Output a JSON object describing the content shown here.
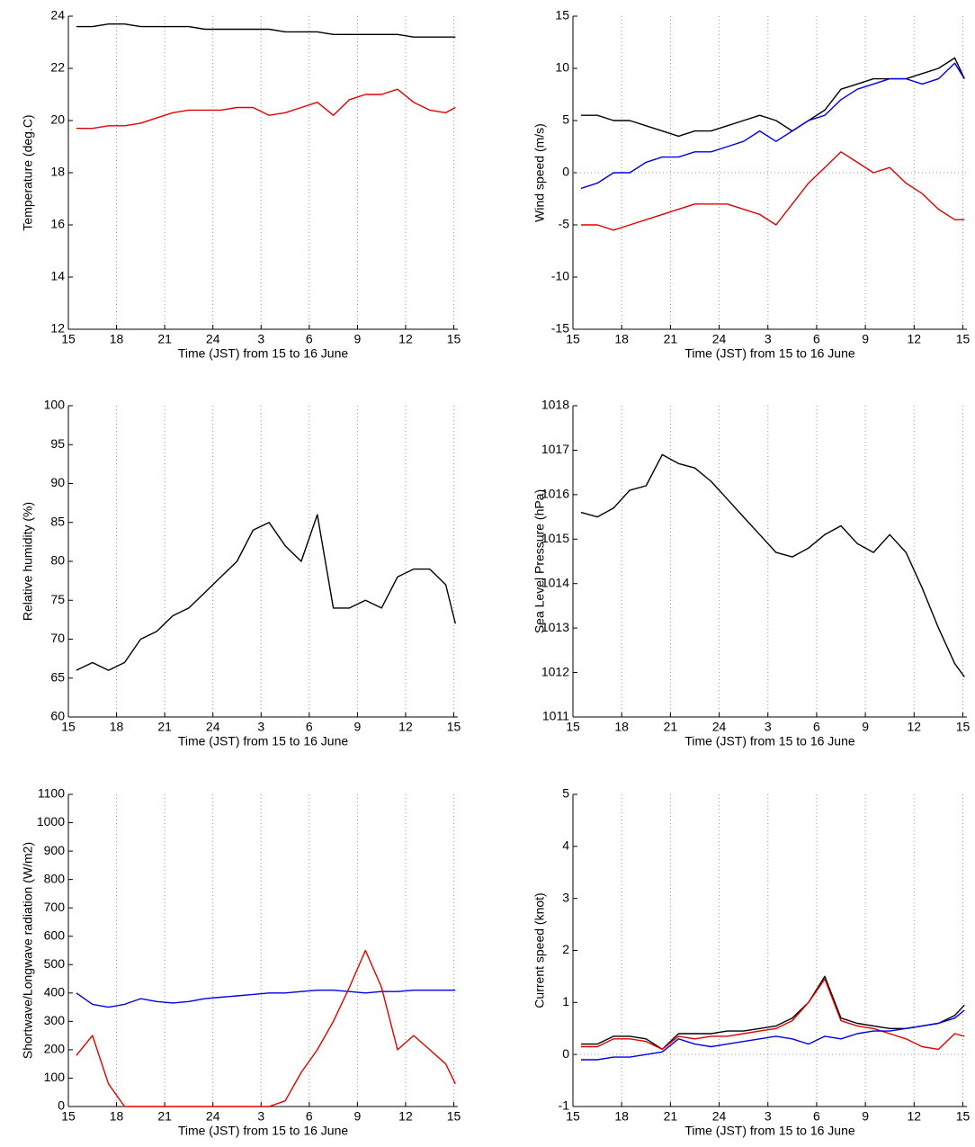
{
  "chart_data": [
    {
      "type": "line",
      "ylabel": "Temperature (deg.C)",
      "xlabel": "Time (JST) from 15 to 16 June",
      "x": [
        15.5,
        16.5,
        17.5,
        18.5,
        19.5,
        20.5,
        21.5,
        22.5,
        23.5,
        24.5,
        25.5,
        26.5,
        27.5,
        28.5,
        29.5,
        30.5,
        31.5,
        32.5,
        33.5,
        34.5,
        35.5,
        36.5,
        37.5,
        38.5,
        39.1
      ],
      "series": [
        {
          "color": "#000000",
          "values": [
            23.6,
            23.6,
            23.7,
            23.7,
            23.6,
            23.6,
            23.6,
            23.6,
            23.5,
            23.5,
            23.5,
            23.5,
            23.5,
            23.4,
            23.4,
            23.4,
            23.3,
            23.3,
            23.3,
            23.3,
            23.3,
            23.2,
            23.2,
            23.2,
            23.2
          ]
        },
        {
          "color": "#e00000",
          "values": [
            19.7,
            19.7,
            19.8,
            19.8,
            19.9,
            20.1,
            20.3,
            20.4,
            20.4,
            20.4,
            20.5,
            20.5,
            20.2,
            20.3,
            20.5,
            20.7,
            20.2,
            20.8,
            21.0,
            21.0,
            21.2,
            20.7,
            20.4,
            20.3,
            20.5
          ]
        }
      ],
      "xlim": [
        15,
        39.25
      ],
      "xticks": [
        15,
        18,
        21,
        24,
        {
          "value": 27,
          "label": "3"
        },
        {
          "value": 30,
          "label": "6"
        },
        {
          "value": 33,
          "label": "9"
        },
        {
          "value": 36,
          "label": "12"
        },
        {
          "value": 39,
          "label": "15"
        }
      ],
      "ylim": [
        12,
        24
      ],
      "yticks": [
        12,
        14,
        16,
        18,
        20,
        22,
        24
      ],
      "xgrid": true
    },
    {
      "type": "line",
      "ylabel": "Wind speed (m/s)",
      "xlabel": "Time (JST) from 15 to 16 June",
      "x": [
        15.5,
        16.5,
        17.5,
        18.5,
        19.5,
        20.5,
        21.5,
        22.5,
        23.5,
        24.5,
        25.5,
        26.5,
        27.5,
        28.5,
        29.5,
        30.5,
        31.5,
        32.5,
        33.5,
        34.5,
        35.5,
        36.5,
        37.5,
        38.5,
        39.1
      ],
      "series": [
        {
          "color": "#000000",
          "values": [
            5.5,
            5.5,
            5,
            5,
            4.5,
            4,
            3.5,
            4,
            4,
            4.5,
            5,
            5.5,
            5,
            4,
            5,
            6,
            8,
            8.5,
            9,
            9,
            9,
            9.5,
            10,
            11,
            9
          ]
        },
        {
          "color": "#0000e0",
          "values": [
            -1.5,
            -1,
            0,
            0,
            1,
            1.5,
            1.5,
            2,
            2,
            2.5,
            3,
            4,
            3,
            4,
            5,
            5.5,
            7,
            8,
            8.5,
            9,
            9,
            8.5,
            9,
            10.5,
            9
          ]
        },
        {
          "color": "#e00000",
          "values": [
            -5,
            -5,
            -5.5,
            -5,
            -4.5,
            -4,
            -3.5,
            -3,
            -3,
            -3,
            -3.5,
            -4,
            -5,
            -3,
            -1,
            0.5,
            2,
            1,
            0,
            0.5,
            -1,
            -2,
            -3.5,
            -4.5,
            -4.5
          ]
        }
      ],
      "xlim": [
        15,
        39.25
      ],
      "xticks": [
        15,
        18,
        21,
        24,
        {
          "value": 27,
          "label": "3"
        },
        {
          "value": 30,
          "label": "6"
        },
        {
          "value": 33,
          "label": "9"
        },
        {
          "value": 36,
          "label": "12"
        },
        {
          "value": 39,
          "label": "15"
        }
      ],
      "ylim": [
        -15,
        15
      ],
      "yticks": [
        -15,
        -10,
        -5,
        0,
        5,
        10,
        15
      ],
      "xgrid": true,
      "reference_line": 0
    },
    {
      "type": "line",
      "ylabel": "Relative humidity (%)",
      "xlabel": "Time (JST) from 15 to 16 June",
      "x": [
        15.5,
        16.5,
        17.5,
        18.5,
        19.5,
        20.5,
        21.5,
        22.5,
        23.5,
        24.5,
        25.5,
        26.5,
        27.5,
        28.5,
        29.5,
        30.5,
        31.5,
        32.5,
        33.5,
        34.5,
        35.5,
        36.5,
        37.5,
        38.5,
        39.1
      ],
      "series": [
        {
          "color": "#000000",
          "values": [
            66,
            67,
            66,
            67,
            70,
            71,
            73,
            74,
            76,
            78,
            80,
            84,
            85,
            82,
            80,
            86,
            74,
            74,
            75,
            74,
            78,
            79,
            79,
            77,
            72
          ]
        }
      ],
      "xlim": [
        15,
        39.25
      ],
      "xticks": [
        15,
        18,
        21,
        24,
        {
          "value": 27,
          "label": "3"
        },
        {
          "value": 30,
          "label": "6"
        },
        {
          "value": 33,
          "label": "9"
        },
        {
          "value": 36,
          "label": "12"
        },
        {
          "value": 39,
          "label": "15"
        }
      ],
      "ylim": [
        60,
        100
      ],
      "yticks": [
        60,
        65,
        70,
        75,
        80,
        85,
        90,
        95,
        100
      ],
      "xgrid": true
    },
    {
      "type": "line",
      "ylabel": "Sea Level Pressure (hPa)",
      "xlabel": "Time (JST) from 15 to 16 June",
      "x": [
        15.5,
        16.5,
        17.5,
        18.5,
        19.5,
        20.5,
        21.5,
        22.5,
        23.5,
        24.5,
        25.5,
        26.5,
        27.5,
        28.5,
        29.5,
        30.5,
        31.5,
        32.5,
        33.5,
        34.5,
        35.5,
        36.5,
        37.5,
        38.5,
        39.1
      ],
      "series": [
        {
          "color": "#000000",
          "values": [
            1015.6,
            1015.5,
            1015.7,
            1016.1,
            1016.2,
            1016.9,
            1016.7,
            1016.6,
            1016.3,
            1015.9,
            1015.5,
            1015.1,
            1014.7,
            1014.6,
            1014.8,
            1015.1,
            1015.3,
            1014.9,
            1014.7,
            1015.1,
            1014.7,
            1013.9,
            1013.0,
            1012.2,
            1011.9
          ]
        }
      ],
      "xlim": [
        15,
        39.25
      ],
      "xticks": [
        15,
        18,
        21,
        24,
        {
          "value": 27,
          "label": "3"
        },
        {
          "value": 30,
          "label": "6"
        },
        {
          "value": 33,
          "label": "9"
        },
        {
          "value": 36,
          "label": "12"
        },
        {
          "value": 39,
          "label": "15"
        }
      ],
      "ylim": [
        1011,
        1018
      ],
      "yticks": [
        1011,
        1012,
        1013,
        1014,
        1015,
        1016,
        1017,
        1018
      ],
      "xgrid": true
    },
    {
      "type": "line",
      "ylabel": "Shortwave/Longwave radiation (W/m2)",
      "xlabel": "Time (JST) from 15 to 16 June",
      "x": [
        15.5,
        16.5,
        17.5,
        18.5,
        19.5,
        20.5,
        21.5,
        22.5,
        23.5,
        24.5,
        25.5,
        26.5,
        27.5,
        28.5,
        29.5,
        30.5,
        31.5,
        32.5,
        33.5,
        34.5,
        35.5,
        36.5,
        37.5,
        38.5,
        39.1
      ],
      "series": [
        {
          "color": "#0000e0",
          "values": [
            400,
            360,
            350,
            360,
            380,
            370,
            365,
            370,
            380,
            385,
            390,
            395,
            400,
            400,
            405,
            410,
            410,
            405,
            400,
            405,
            405,
            410,
            410,
            410,
            410
          ]
        },
        {
          "color": "#e00000",
          "values": [
            180,
            250,
            80,
            0,
            0,
            0,
            0,
            0,
            0,
            0,
            0,
            0,
            0,
            20,
            120,
            200,
            300,
            420,
            550,
            420,
            200,
            250,
            200,
            150,
            80
          ]
        }
      ],
      "xlim": [
        15,
        39.25
      ],
      "xticks": [
        15,
        18,
        21,
        24,
        {
          "value": 27,
          "label": "3"
        },
        {
          "value": 30,
          "label": "6"
        },
        {
          "value": 33,
          "label": "9"
        },
        {
          "value": 36,
          "label": "12"
        },
        {
          "value": 39,
          "label": "15"
        }
      ],
      "ylim": [
        0,
        1100
      ],
      "yticks": [
        0,
        100,
        200,
        300,
        400,
        500,
        600,
        700,
        800,
        900,
        1000,
        1100
      ],
      "xgrid": true
    },
    {
      "type": "line",
      "ylabel": "Current speed (knot)",
      "xlabel": "Time (JST) from 15 to 16 June",
      "x": [
        15.5,
        16.5,
        17.5,
        18.5,
        19.5,
        20.5,
        21.5,
        22.5,
        23.5,
        24.5,
        25.5,
        26.5,
        27.5,
        28.5,
        29.5,
        30.5,
        31.5,
        32.5,
        33.5,
        34.5,
        35.5,
        36.5,
        37.5,
        38.5,
        39.1
      ],
      "series": [
        {
          "color": "#000000",
          "values": [
            0.2,
            0.2,
            0.35,
            0.35,
            0.3,
            0.1,
            0.4,
            0.4,
            0.4,
            0.45,
            0.45,
            0.5,
            0.55,
            0.7,
            1.0,
            1.5,
            0.7,
            0.6,
            0.55,
            0.5,
            0.5,
            0.55,
            0.6,
            0.75,
            0.95
          ]
        },
        {
          "color": "#e00000",
          "values": [
            0.15,
            0.15,
            0.3,
            0.3,
            0.25,
            0.1,
            0.35,
            0.3,
            0.35,
            0.35,
            0.4,
            0.45,
            0.5,
            0.65,
            1.0,
            1.45,
            0.65,
            0.55,
            0.5,
            0.4,
            0.3,
            0.15,
            0.1,
            0.4,
            0.35
          ]
        },
        {
          "color": "#0000e0",
          "values": [
            -0.1,
            -0.1,
            -0.05,
            -0.05,
            0,
            0.05,
            0.3,
            0.2,
            0.15,
            0.2,
            0.25,
            0.3,
            0.35,
            0.3,
            0.2,
            0.35,
            0.3,
            0.4,
            0.45,
            0.45,
            0.5,
            0.55,
            0.6,
            0.7,
            0.85
          ]
        }
      ],
      "xlim": [
        15,
        39.25
      ],
      "xticks": [
        15,
        18,
        21,
        24,
        {
          "value": 27,
          "label": "3"
        },
        {
          "value": 30,
          "label": "6"
        },
        {
          "value": 33,
          "label": "9"
        },
        {
          "value": 36,
          "label": "12"
        },
        {
          "value": 39,
          "label": "15"
        }
      ],
      "ylim": [
        -1,
        5
      ],
      "yticks": [
        -1,
        0,
        1,
        2,
        3,
        4,
        5
      ],
      "xgrid": true,
      "reference_line": 0
    }
  ]
}
